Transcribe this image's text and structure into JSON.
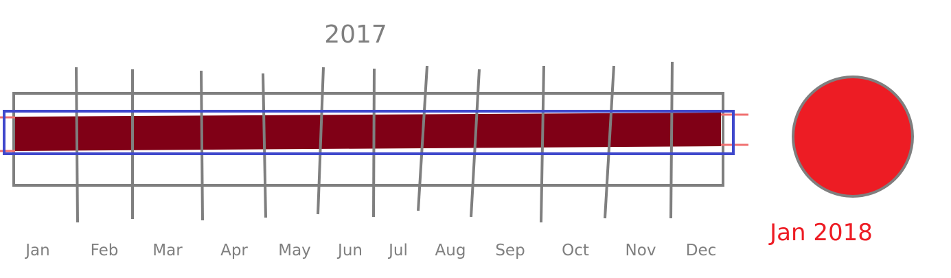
{
  "header": {
    "title": "2017"
  },
  "months": [
    "Jan",
    "Feb",
    "Mar",
    "Apr",
    "May",
    "Jun",
    "Jul",
    "Aug",
    "Sep",
    "Oct",
    "Nov",
    "Dec"
  ],
  "marker": {
    "label": "Jan 2018"
  }
}
